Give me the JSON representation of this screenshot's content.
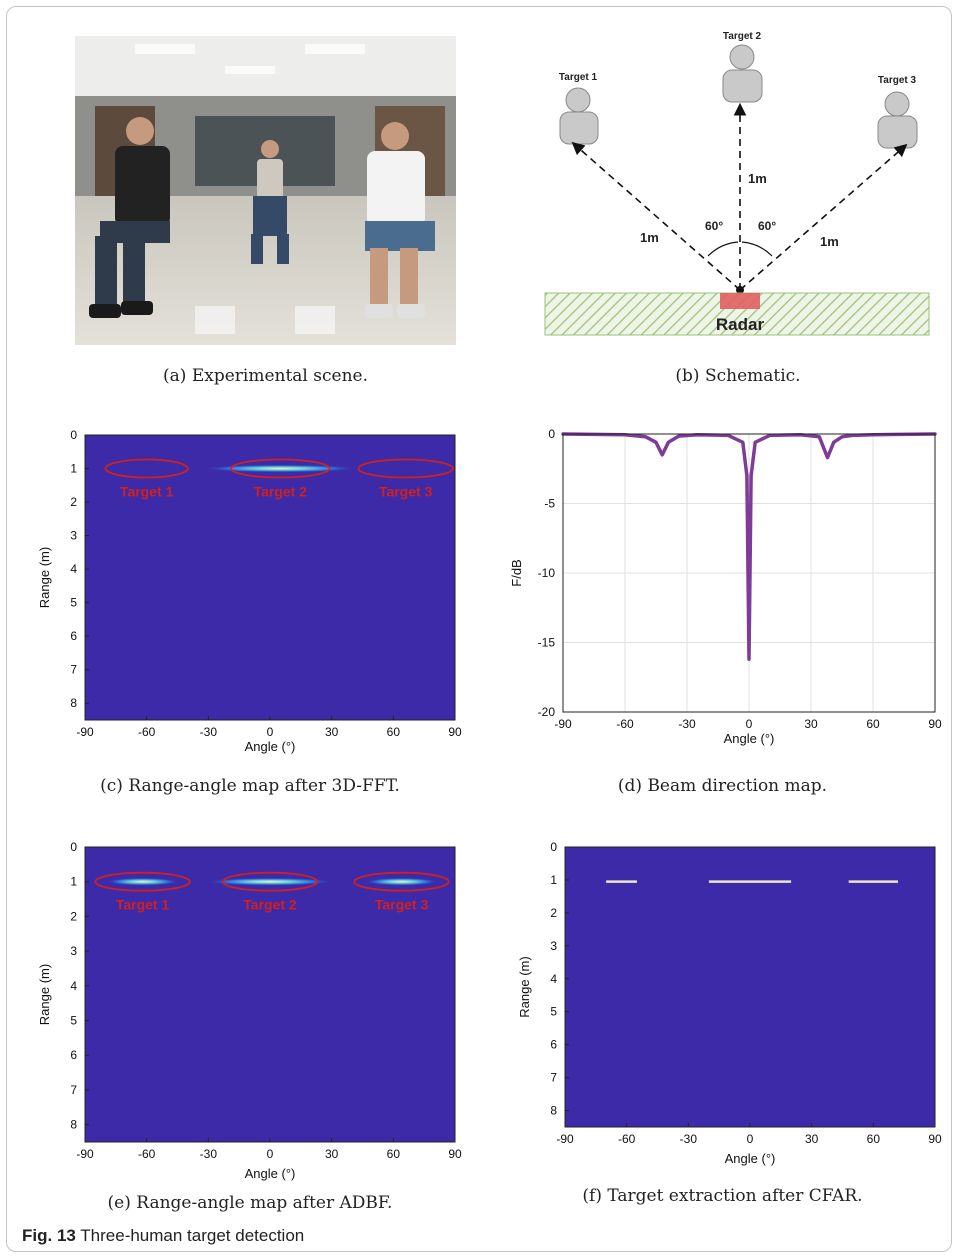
{
  "figure": {
    "label": "Fig. 13",
    "title": "Three-human target detection"
  },
  "panels": {
    "a": {
      "caption": "(a) Experimental scene."
    },
    "b": {
      "caption": "(b) Schematic.",
      "targets": [
        "Target 1",
        "Target 2",
        "Target 3"
      ],
      "distance_label": "1m",
      "angle_label": "60°",
      "radar_label": "Radar"
    },
    "c": {
      "caption": "(c) Range-angle map after 3D-FFT."
    },
    "d": {
      "caption": "(d) Beam direction map."
    },
    "e": {
      "caption": "(e) Range-angle map after ADBF."
    },
    "f": {
      "caption": "(f) Target extraction after CFAR."
    }
  },
  "colors": {
    "map_background": "#3c2aa8",
    "target_ellipse": "#d02020",
    "beam_line": "#7e3b98",
    "radar_box": "#e06060",
    "hatch": "#9bc27a"
  },
  "chart_data": [
    {
      "id": "c",
      "type": "heatmap",
      "xlabel": "Angle (°)",
      "ylabel": "Range (m)",
      "xlim": [
        -90,
        90
      ],
      "ylim": [
        0,
        8.5
      ],
      "xticks": [
        -90,
        -60,
        -30,
        0,
        30,
        60,
        90
      ],
      "yticks": [
        0,
        1,
        2,
        3,
        4,
        5,
        6,
        7,
        8
      ],
      "y_reversed": true,
      "targets": [
        {
          "label": "Target 1",
          "angle": -60,
          "range": 1.0,
          "width": 40
        },
        {
          "label": "Target 2",
          "angle": 5,
          "range": 1.0,
          "width": 48
        },
        {
          "label": "Target 3",
          "angle": 66,
          "range": 1.0,
          "width": 46
        }
      ],
      "hot_spots": [
        {
          "angle": 5,
          "range": 1.0,
          "span": 75
        }
      ]
    },
    {
      "id": "d",
      "type": "line",
      "xlabel": "Angle (°)",
      "ylabel": "F/dB",
      "xlim": [
        -90,
        90
      ],
      "ylim": [
        -20,
        0
      ],
      "xticks": [
        -90,
        -60,
        -30,
        0,
        30,
        60,
        90
      ],
      "yticks": [
        0,
        -5,
        -10,
        -15,
        -20
      ],
      "grid": true,
      "series": [
        {
          "x": [
            -90,
            -60,
            -50,
            -45,
            -42,
            -39,
            -34,
            -25,
            -10,
            -3,
            -1,
            0,
            1,
            3,
            10,
            25,
            34,
            38,
            41,
            45,
            50,
            60,
            90
          ],
          "values": [
            0,
            -0.05,
            -0.2,
            -0.6,
            -1.5,
            -0.6,
            -0.15,
            -0.05,
            -0.1,
            -0.6,
            -3,
            -16.2,
            -3,
            -0.6,
            -0.1,
            -0.05,
            -0.2,
            -1.7,
            -0.6,
            -0.2,
            -0.1,
            -0.05,
            0
          ]
        }
      ]
    },
    {
      "id": "e",
      "type": "heatmap",
      "xlabel": "Angle (°)",
      "ylabel": "Range (m)",
      "xlim": [
        -90,
        90
      ],
      "ylim": [
        0,
        8.5
      ],
      "xticks": [
        -90,
        -60,
        -30,
        0,
        30,
        60,
        90
      ],
      "yticks": [
        0,
        1,
        2,
        3,
        4,
        5,
        6,
        7,
        8
      ],
      "y_reversed": true,
      "targets": [
        {
          "label": "Target 1",
          "angle": -62,
          "range": 1.0,
          "width": 46
        },
        {
          "label": "Target 2",
          "angle": 0,
          "range": 1.0,
          "width": 46
        },
        {
          "label": "Target 3",
          "angle": 64,
          "range": 1.0,
          "width": 46
        }
      ],
      "hot_spots": [
        {
          "angle": -62,
          "range": 1.0,
          "span": 36
        },
        {
          "angle": 0,
          "range": 1.0,
          "span": 62
        },
        {
          "angle": 64,
          "range": 1.0,
          "span": 36
        }
      ]
    },
    {
      "id": "f",
      "type": "heatmap",
      "xlabel": "Angle (°)",
      "ylabel": "Range (m)",
      "xlim": [
        -90,
        90
      ],
      "ylim": [
        0,
        8.5
      ],
      "xticks": [
        -90,
        -60,
        -30,
        0,
        30,
        60,
        90
      ],
      "yticks": [
        0,
        1,
        2,
        3,
        4,
        5,
        6,
        7,
        8
      ],
      "y_reversed": true,
      "segments": [
        {
          "from": -70,
          "to": -55,
          "range": 1.05
        },
        {
          "from": -20,
          "to": 20,
          "range": 1.05
        },
        {
          "from": 48,
          "to": 72,
          "range": 1.05
        }
      ]
    }
  ]
}
